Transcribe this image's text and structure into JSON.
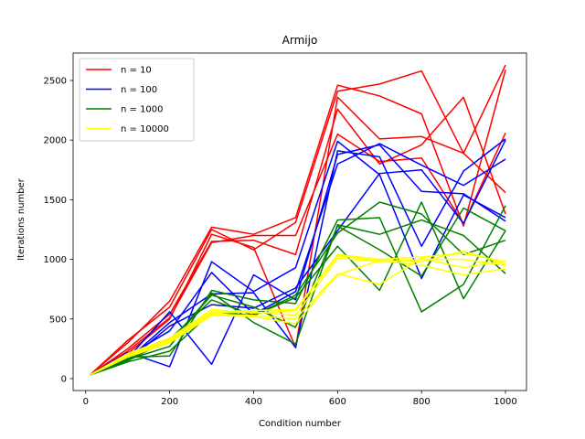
{
  "chart_data": {
    "type": "line",
    "title": "Armijo",
    "xlabel": "Condition number",
    "ylabel": "Iterations number",
    "xlim": [
      -30,
      1050
    ],
    "ylim": [
      -100,
      2730
    ],
    "xticks": [
      0,
      200,
      400,
      600,
      800,
      1000
    ],
    "yticks": [
      0,
      500,
      1000,
      1500,
      2000,
      2500
    ],
    "grid": false,
    "legend_position": "top-left",
    "x": [
      10,
      100,
      200,
      300,
      400,
      500,
      600,
      700,
      800,
      900,
      1000
    ],
    "groups": [
      {
        "name": "n = 10",
        "color": "#ff0000",
        "runs": [
          [
            30,
            300,
            650,
            1270,
            1210,
            1350,
            2460,
            2370,
            2220,
            1280,
            2590
          ],
          [
            30,
            320,
            600,
            1250,
            1080,
            1310,
            2410,
            2470,
            2580,
            1890,
            2630
          ],
          [
            30,
            250,
            540,
            1150,
            1160,
            1040,
            2260,
            1800,
            1960,
            2360,
            1380
          ],
          [
            30,
            230,
            510,
            1140,
            1200,
            1200,
            2050,
            1820,
            1850,
            1300,
            2060
          ],
          [
            30,
            210,
            500,
            1210,
            1100,
            260,
            2360,
            2010,
            2030,
            1890,
            1560
          ]
        ]
      },
      {
        "name": "n = 100",
        "color": "#0000ff",
        "runs": [
          [
            30,
            220,
            100,
            980,
            730,
            930,
            1990,
            1710,
            840,
            1540,
            1350
          ],
          [
            30,
            170,
            560,
            120,
            870,
            660,
            1880,
            1960,
            1570,
            1550,
            1320
          ],
          [
            30,
            190,
            400,
            890,
            540,
            730,
            1800,
            1970,
            1790,
            1620,
            1840
          ],
          [
            30,
            160,
            470,
            710,
            720,
            260,
            1910,
            1860,
            1110,
            1740,
            2010
          ],
          [
            30,
            150,
            440,
            620,
            590,
            760,
            1240,
            1720,
            1750,
            1300,
            2000
          ]
        ]
      },
      {
        "name": "n = 1000",
        "color": "#008000",
        "runs": [
          [
            30,
            180,
            190,
            740,
            660,
            630,
            1330,
            1350,
            560,
            790,
            1450
          ],
          [
            30,
            160,
            270,
            720,
            470,
            290,
            1290,
            1210,
            1330,
            1200,
            880
          ],
          [
            30,
            150,
            330,
            660,
            530,
            700,
            1220,
            1480,
            1380,
            1040,
            1160
          ],
          [
            30,
            140,
            230,
            560,
            530,
            680,
            1110,
            740,
            1480,
            670,
            1240
          ],
          [
            30,
            170,
            310,
            700,
            600,
            430,
            1280,
            1080,
            860,
            1430,
            1240
          ]
        ]
      },
      {
        "name": "n = 10000",
        "color": "#ffff00",
        "runs": [
          [
            30,
            200,
            330,
            560,
            570,
            580,
            1040,
            1000,
            1020,
            1050,
            980
          ],
          [
            30,
            210,
            340,
            580,
            550,
            570,
            1030,
            990,
            980,
            1070,
            960
          ],
          [
            30,
            190,
            310,
            540,
            530,
            500,
            880,
            790,
            1010,
            930,
            990
          ],
          [
            30,
            180,
            300,
            530,
            520,
            460,
            870,
            990,
            950,
            870,
            920
          ],
          [
            30,
            195,
            320,
            550,
            560,
            530,
            1010,
            980,
            1000,
            1000,
            950
          ]
        ]
      }
    ]
  }
}
